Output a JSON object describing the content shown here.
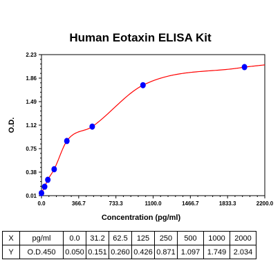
{
  "chart_data": {
    "type": "scatter",
    "title": "Human Eotaxin ELISA Kit",
    "xlabel": "Concentration (pg/ml)",
    "ylabel": "O.D.",
    "xlim": [
      0,
      2200
    ],
    "ylim": [
      0.01,
      2.23
    ],
    "x_ticks": [
      "0.0",
      "366.7",
      "733.3",
      "1100.0",
      "1466.7",
      "1833.3",
      "2200.0"
    ],
    "y_ticks": [
      "0.01",
      "0.38",
      "0.75",
      "1.12",
      "1.49",
      "1.86",
      "2.23"
    ],
    "x": [
      0,
      31.2,
      62.5,
      125,
      250,
      500,
      1000,
      2000
    ],
    "y": [
      0.05,
      0.151,
      0.26,
      0.426,
      0.871,
      1.097,
      1.749,
      2.034
    ],
    "point_color": "#0000ff",
    "curve_color": "#ff0000",
    "grid": false,
    "table": {
      "rows": [
        [
          "X",
          "pg/ml",
          "0.0",
          "31.2",
          "62.5",
          "125",
          "250",
          "500",
          "1000",
          "2000"
        ],
        [
          "Y",
          "O.D.450",
          "0.050",
          "0.151",
          "0.260",
          "0.426",
          "0.871",
          "1.097",
          "1.749",
          "2.034"
        ]
      ]
    }
  }
}
